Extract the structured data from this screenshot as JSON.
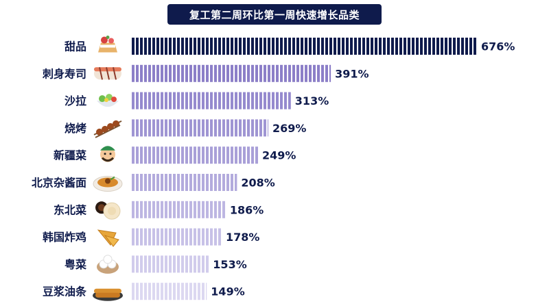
{
  "chart_data": {
    "type": "bar",
    "orientation": "horizontal",
    "title": "复工第二周环比第一周快速增长品类",
    "categories": [
      "甜品",
      "刺身寿司",
      "沙拉",
      "烧烤",
      "新疆菜",
      "北京杂酱面",
      "东北菜",
      "韩国炸鸡",
      "粤菜",
      "豆浆油条"
    ],
    "values": [
      676,
      391,
      313,
      269,
      249,
      208,
      186,
      178,
      153,
      149
    ],
    "value_labels": [
      "676%",
      "391%",
      "313%",
      "269%",
      "249%",
      "208%",
      "186%",
      "178%",
      "153%",
      "149%"
    ],
    "unit": "%",
    "xlim": [
      0,
      676
    ],
    "bar_style": "striped",
    "colors": [
      "#0f1b4c",
      "#8c7fc8",
      "#958ace",
      "#9f95d3",
      "#a9a0d8",
      "#b3abdd",
      "#bdb6e2",
      "#c7c1e7",
      "#d1ccec",
      "#dcd8f1"
    ],
    "icons": [
      "dessert-icon",
      "sushi-icon",
      "salad-icon",
      "barbecue-icon",
      "xinjiang-chef-icon",
      "zhajiang-noodles-icon",
      "dongbei-dishes-icon",
      "fried-chicken-icon",
      "dim-sum-icon",
      "youtiao-soymilk-icon"
    ],
    "grid": false,
    "legend": "none"
  }
}
